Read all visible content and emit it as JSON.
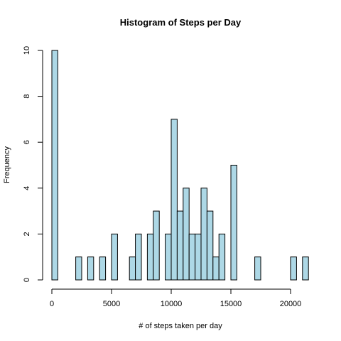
{
  "chart_data": {
    "type": "histogram",
    "title": "Histogram of Steps per Day",
    "xlabel": "# of steps taken per day",
    "ylabel": "Frequency",
    "bin_width": 500,
    "x_start": 0,
    "xlim": [
      0,
      21500
    ],
    "ylim": [
      0,
      10
    ],
    "x_ticks": [
      0,
      5000,
      10000,
      15000,
      20000
    ],
    "y_ticks": [
      0,
      2,
      4,
      6,
      8,
      10
    ],
    "bar_color": "#ADD8E6",
    "bar_border_color": "#000000",
    "grid": false,
    "values": [
      10,
      0,
      0,
      0,
      1,
      0,
      1,
      0,
      1,
      0,
      2,
      0,
      0,
      1,
      2,
      0,
      2,
      3,
      0,
      2,
      7,
      3,
      4,
      2,
      2,
      4,
      3,
      1,
      2,
      0,
      5,
      0,
      0,
      0,
      1,
      0,
      0,
      0,
      0,
      0,
      1,
      0,
      1
    ]
  }
}
